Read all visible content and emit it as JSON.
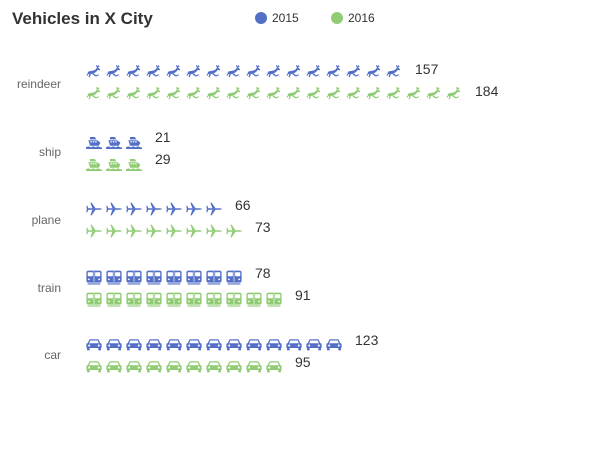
{
  "chart_data": {
    "type": "bar",
    "title": "Vehicles in X City",
    "legend_position": "top",
    "categories": [
      "reindeer",
      "ship",
      "plane",
      "train",
      "car"
    ],
    "icons": [
      "reindeer-icon",
      "ship-icon",
      "plane-icon",
      "train-icon",
      "car-icon"
    ],
    "symbol_unit": 10,
    "series": [
      {
        "name": "2015",
        "color": "#5470c6",
        "values": [
          157,
          21,
          66,
          78,
          123
        ]
      },
      {
        "name": "2016",
        "color": "#91cc75",
        "values": [
          184,
          29,
          73,
          91,
          95
        ]
      }
    ]
  }
}
